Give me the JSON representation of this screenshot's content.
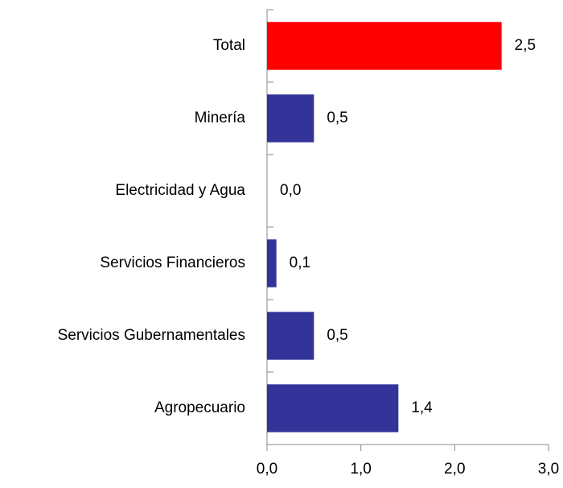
{
  "chart_data": {
    "type": "bar",
    "orientation": "horizontal",
    "categories": [
      "Total",
      "Minería",
      "Electricidad y Agua",
      "Servicios Financieros",
      "Servicios Gubernamentales",
      "Agropecuario"
    ],
    "values": [
      2.5,
      0.5,
      0.0,
      0.1,
      0.5,
      1.4
    ],
    "value_labels": [
      "2,5",
      "0,5",
      "0,0",
      "0,1",
      "0,5",
      "1,4"
    ],
    "colors": [
      "#ff0000",
      "#333399",
      "#333399",
      "#333399",
      "#333399",
      "#333399"
    ],
    "xlim": [
      0,
      3
    ],
    "xticks": [
      {
        "value": 0,
        "label": "0,0"
      },
      {
        "value": 1,
        "label": "1,0"
      },
      {
        "value": 2,
        "label": "2,0"
      },
      {
        "value": 3,
        "label": "3,0"
      }
    ],
    "grid": false
  }
}
